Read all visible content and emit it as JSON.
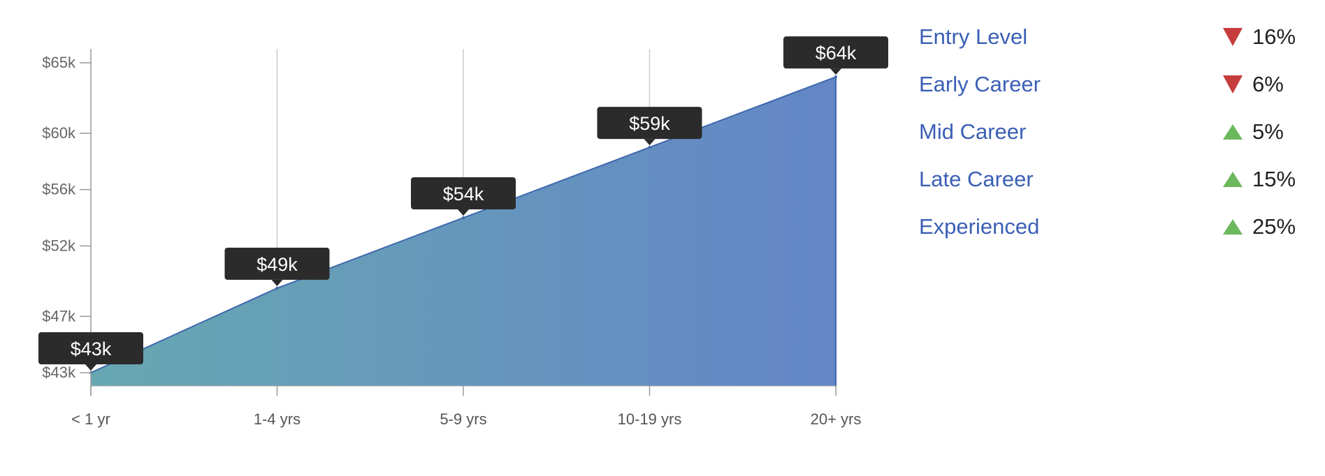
{
  "chart_data": {
    "type": "area",
    "categories": [
      "< 1 yr",
      "1-4 yrs",
      "5-9 yrs",
      "10-19 yrs",
      "20+ yrs"
    ],
    "values": [
      43000,
      49000,
      54000,
      59000,
      64000
    ],
    "data_labels": [
      "$43k",
      "$49k",
      "$54k",
      "$59k",
      "$64k"
    ],
    "y_ticks": [
      {
        "value": 43000,
        "label": "$43k"
      },
      {
        "value": 47000,
        "label": "$47k"
      },
      {
        "value": 52000,
        "label": "$52k"
      },
      {
        "value": 56000,
        "label": "$56k"
      },
      {
        "value": 60000,
        "label": "$60k"
      },
      {
        "value": 65000,
        "label": "$65k"
      }
    ],
    "ylim": [
      42000,
      66000
    ],
    "grid": "vertical",
    "title": "",
    "xlabel": "",
    "ylabel": ""
  },
  "legend": {
    "items": [
      {
        "label": "Entry Level",
        "direction": "down",
        "change": "16%"
      },
      {
        "label": "Early Career",
        "direction": "down",
        "change": "6%"
      },
      {
        "label": "Mid Career",
        "direction": "up",
        "change": "5%"
      },
      {
        "label": "Late Career",
        "direction": "up",
        "change": "15%"
      },
      {
        "label": "Experienced",
        "direction": "up",
        "change": "25%"
      }
    ]
  },
  "colors": {
    "area_start": "#5fa3ad",
    "area_end": "#5b80c4",
    "area_stroke": "#3e68ad",
    "label_text": "#3a5fb5",
    "tooltip_bg": "#2b2b2b",
    "up": "#6cb85c",
    "down": "#c73c3c"
  }
}
